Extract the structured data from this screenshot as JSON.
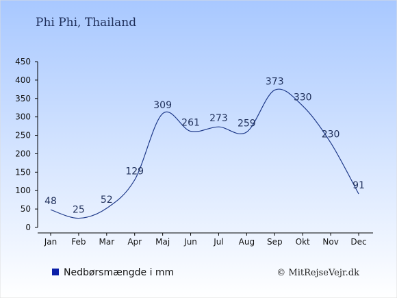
{
  "header": {
    "title": "Phi Phi, Thailand"
  },
  "legend": {
    "label": "Nedbørsmængde i mm",
    "position": "bottom-left"
  },
  "footer": {
    "copyright": "© MitRejseVejr.dk"
  },
  "colors": {
    "background_top": "#a8c8ff",
    "background_bottom": "#ffffff",
    "line": "#1f3a8a",
    "legend_swatch": "#0b1fa8",
    "text": "#1f2f5a"
  },
  "chart_data": {
    "type": "line",
    "categories": [
      "Jan",
      "Feb",
      "Mar",
      "Apr",
      "Maj",
      "Jun",
      "Jul",
      "Aug",
      "Sep",
      "Okt",
      "Nov",
      "Dec"
    ],
    "series": [
      {
        "name": "Nedbørsmængde i mm",
        "values": [
          48,
          25,
          52,
          129,
          309,
          261,
          273,
          259,
          373,
          330,
          230,
          91
        ]
      }
    ],
    "data_labels": [
      "48",
      "25",
      "52",
      "129",
      "309",
      "261",
      "273",
      "259",
      "373",
      "330",
      "230",
      "91"
    ],
    "ylim": [
      0,
      450
    ],
    "yticks": [
      0,
      50,
      100,
      150,
      200,
      250,
      300,
      350,
      400,
      450
    ],
    "xlabel": "",
    "ylabel": "",
    "grid": false
  }
}
